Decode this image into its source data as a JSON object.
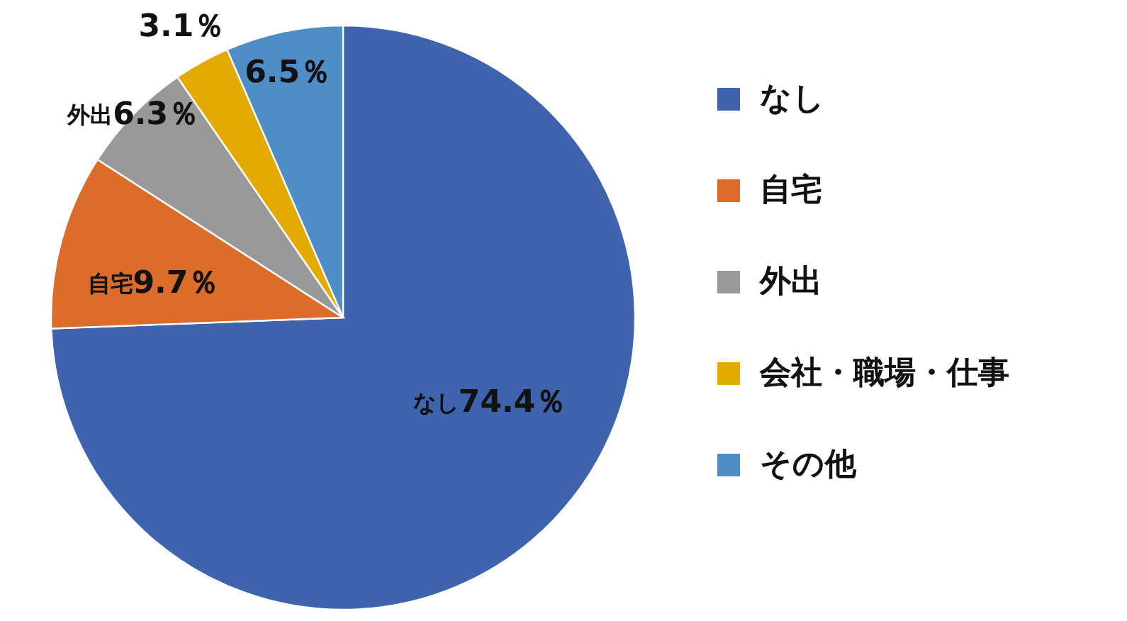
{
  "chart_data": {
    "type": "pie",
    "categories": [
      "なし",
      "自宅",
      "外出",
      "会社・職場・仕事",
      "その他"
    ],
    "values": [
      74.4,
      9.7,
      6.3,
      3.1,
      6.5
    ],
    "colors": [
      "#3f63ad",
      "#db6c2a",
      "#999999",
      "#e3ab00",
      "#4f8dc6"
    ],
    "value_labels": [
      "なし74.4％",
      "自宅9.7％",
      "外出6.3％",
      "3.1％",
      "6.5％"
    ],
    "legend": "right"
  }
}
